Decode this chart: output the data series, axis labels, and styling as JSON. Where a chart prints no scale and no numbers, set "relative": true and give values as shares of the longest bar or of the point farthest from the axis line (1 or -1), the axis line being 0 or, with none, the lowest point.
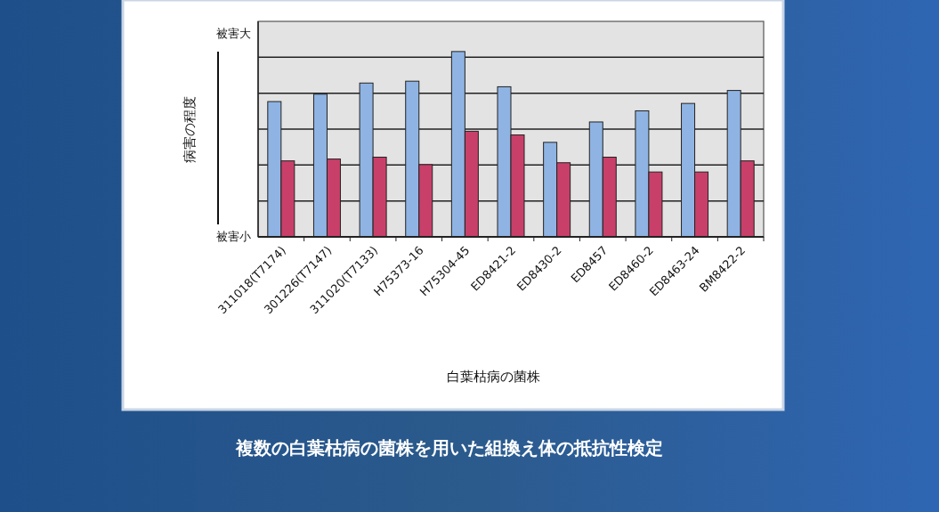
{
  "chart_data": {
    "type": "bar",
    "title": "複数の白葉枯病の菌株を用いた組換え体の抵抗性検定",
    "xlabel": "白葉枯病の菌株",
    "ylabel": "病害の程度",
    "annotations": [
      "被害大",
      "被害小"
    ],
    "relative": true,
    "grid": "y",
    "categories": [
      "311018(T7174)",
      "301226(T7147)",
      "311020(T7133)",
      "H75373-16",
      "H75304-45",
      "ED8421-2",
      "ED8430-2",
      "ED8457",
      "ED8460-2",
      "ED8463-24",
      "BM8422-2"
    ],
    "series": [
      {
        "color": "#8fb4e3",
        "values": [
          0.73,
          0.77,
          0.83,
          0.84,
          1,
          0.81,
          0.51,
          0.62,
          0.68,
          0.72,
          0.79
        ]
      },
      {
        "color": "#c8406a",
        "values": [
          0.41,
          0.42,
          0.43,
          0.39,
          0.57,
          0.55,
          0.4,
          0.43,
          0.35,
          0.35,
          0.41
        ]
      }
    ]
  }
}
